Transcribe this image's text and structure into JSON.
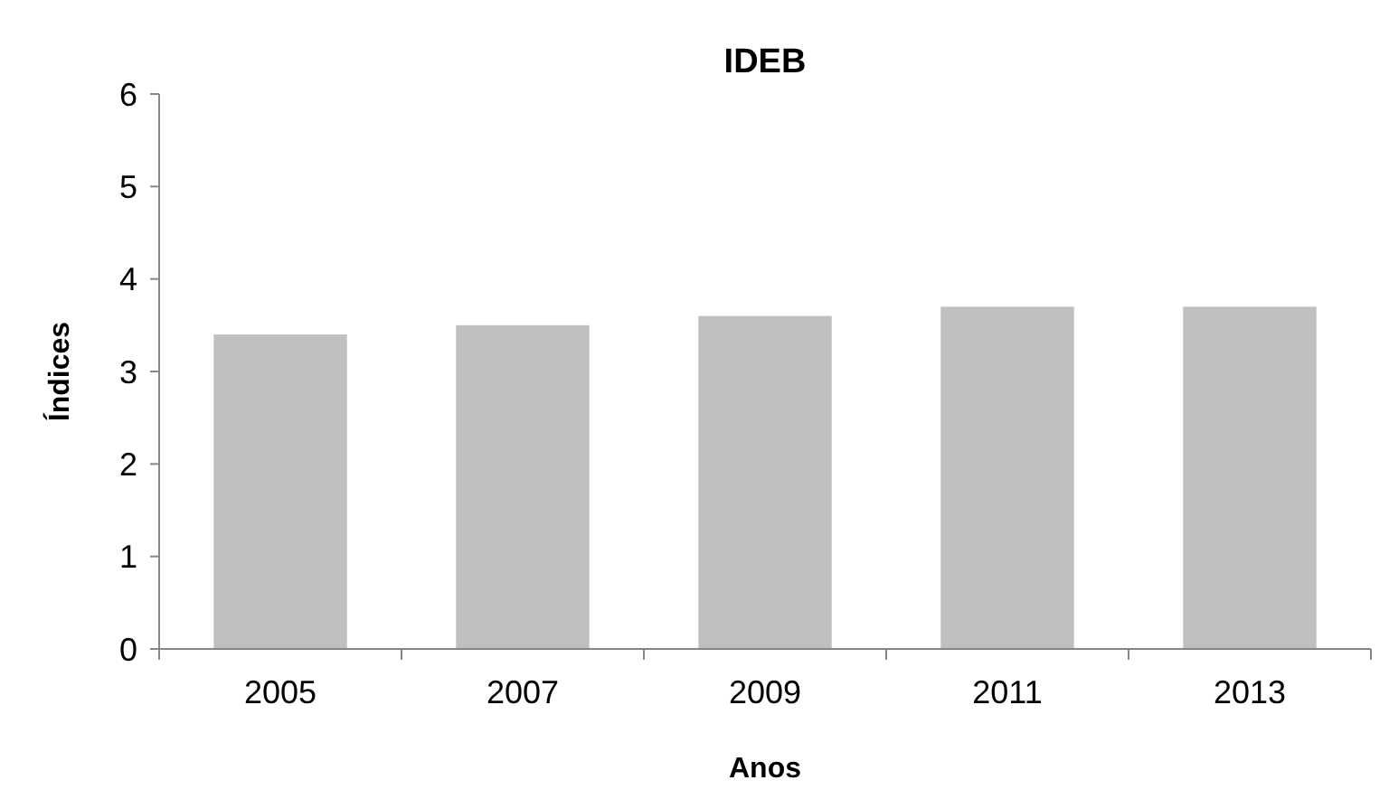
{
  "chart_data": {
    "type": "bar",
    "title": "IDEB",
    "xlabel": "Anos",
    "ylabel": "Índices",
    "categories": [
      "2005",
      "2007",
      "2009",
      "2011",
      "2013"
    ],
    "values": [
      3.4,
      3.5,
      3.6,
      3.7,
      3.7
    ],
    "color": "#bfbfbf",
    "ylim": [
      0,
      6
    ],
    "yticks": [
      0,
      1,
      2,
      3,
      4,
      5,
      6
    ],
    "grid": false
  }
}
